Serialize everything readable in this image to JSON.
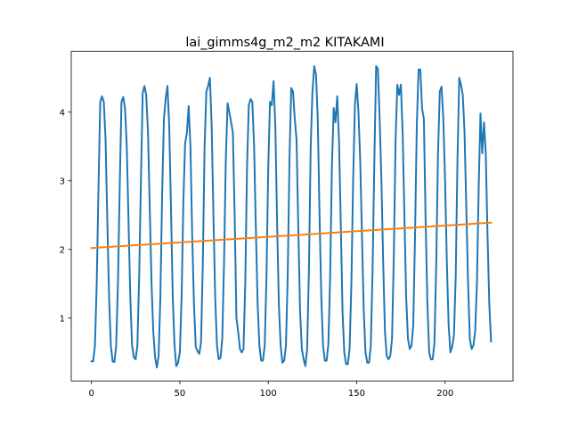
{
  "chart_data": {
    "type": "line",
    "title": "lai_gimms4g_m2_m2 KITAKAMI",
    "xlabel": "",
    "ylabel": "",
    "xlim": [
      -11.4,
      238.4
    ],
    "ylim": [
      0.085,
      4.885
    ],
    "x_ticks": [
      0,
      50,
      100,
      150,
      200
    ],
    "y_ticks": [
      1,
      2,
      3,
      4
    ],
    "grid": false,
    "legend": "none",
    "series": [
      {
        "color": "#1f77b4",
        "points": [
          [
            0,
            0.37
          ],
          [
            1,
            0.37
          ],
          [
            2,
            0.6
          ],
          [
            3,
            1.5
          ],
          [
            4,
            2.9
          ],
          [
            5,
            4.15
          ],
          [
            6,
            4.23
          ],
          [
            7,
            4.15
          ],
          [
            8,
            3.6
          ],
          [
            9,
            2.4
          ],
          [
            10,
            1.3
          ],
          [
            11,
            0.6
          ],
          [
            12,
            0.37
          ],
          [
            13,
            0.36
          ],
          [
            14,
            0.6
          ],
          [
            15,
            1.5
          ],
          [
            16,
            2.9
          ],
          [
            17,
            4.15
          ],
          [
            18,
            4.22
          ],
          [
            19,
            4.05
          ],
          [
            20,
            3.5
          ],
          [
            21,
            2.4
          ],
          [
            22,
            1.3
          ],
          [
            23,
            0.6
          ],
          [
            24,
            0.43
          ],
          [
            25,
            0.4
          ],
          [
            26,
            0.6
          ],
          [
            27,
            1.6
          ],
          [
            28,
            3.0
          ],
          [
            29,
            4.28
          ],
          [
            30,
            4.38
          ],
          [
            31,
            4.25
          ],
          [
            32,
            3.7
          ],
          [
            33,
            2.6
          ],
          [
            34,
            1.5
          ],
          [
            35,
            0.8
          ],
          [
            36,
            0.43
          ],
          [
            37,
            0.28
          ],
          [
            38,
            0.45
          ],
          [
            39,
            1.3
          ],
          [
            40,
            2.8
          ],
          [
            41,
            3.9
          ],
          [
            42,
            4.2
          ],
          [
            43,
            4.38
          ],
          [
            44,
            3.8
          ],
          [
            45,
            2.6
          ],
          [
            46,
            1.3
          ],
          [
            47,
            0.6
          ],
          [
            48,
            0.3
          ],
          [
            49,
            0.35
          ],
          [
            50,
            0.5
          ],
          [
            51,
            1.3
          ],
          [
            52,
            2.7
          ],
          [
            53,
            3.55
          ],
          [
            54,
            3.7
          ],
          [
            55,
            4.09
          ],
          [
            56,
            3.5
          ],
          [
            57,
            2.2
          ],
          [
            58,
            1.2
          ],
          [
            59,
            0.58
          ],
          [
            60,
            0.52
          ],
          [
            61,
            0.48
          ],
          [
            62,
            0.65
          ],
          [
            63,
            1.8
          ],
          [
            64,
            3.5
          ],
          [
            65,
            4.3
          ],
          [
            66,
            4.38
          ],
          [
            67,
            4.5
          ],
          [
            68,
            3.8
          ],
          [
            69,
            2.5
          ],
          [
            70,
            1.3
          ],
          [
            71,
            0.6
          ],
          [
            72,
            0.4
          ],
          [
            73,
            0.42
          ],
          [
            74,
            0.7
          ],
          [
            75,
            1.8
          ],
          [
            76,
            3.3
          ],
          [
            77,
            4.13
          ],
          [
            78,
            4.0
          ],
          [
            79,
            3.85
          ],
          [
            80,
            3.7
          ],
          [
            81,
            2.5
          ],
          [
            82,
            1.0
          ],
          [
            83,
            0.8
          ],
          [
            84,
            0.55
          ],
          [
            85,
            0.5
          ],
          [
            86,
            0.55
          ],
          [
            87,
            1.5
          ],
          [
            88,
            3.2
          ],
          [
            89,
            4.1
          ],
          [
            90,
            4.19
          ],
          [
            91,
            4.15
          ],
          [
            92,
            3.5
          ],
          [
            93,
            2.3
          ],
          [
            94,
            1.2
          ],
          [
            95,
            0.6
          ],
          [
            96,
            0.38
          ],
          [
            97,
            0.38
          ],
          [
            98,
            0.6
          ],
          [
            99,
            1.6
          ],
          [
            100,
            3.2
          ],
          [
            101,
            4.15
          ],
          [
            102,
            4.1
          ],
          [
            103,
            4.45
          ],
          [
            104,
            3.8
          ],
          [
            105,
            2.4
          ],
          [
            106,
            1.2
          ],
          [
            107,
            0.6
          ],
          [
            108,
            0.35
          ],
          [
            109,
            0.38
          ],
          [
            110,
            0.6
          ],
          [
            111,
            1.6
          ],
          [
            112,
            3.3
          ],
          [
            113,
            4.35
          ],
          [
            114,
            4.3
          ],
          [
            115,
            3.9
          ],
          [
            116,
            3.6
          ],
          [
            117,
            2.3
          ],
          [
            118,
            1.1
          ],
          [
            119,
            0.55
          ],
          [
            120,
            0.4
          ],
          [
            121,
            0.3
          ],
          [
            122,
            0.55
          ],
          [
            123,
            1.7
          ],
          [
            124,
            3.5
          ],
          [
            125,
            4.3
          ],
          [
            126,
            4.67
          ],
          [
            127,
            4.55
          ],
          [
            128,
            3.9
          ],
          [
            129,
            2.5
          ],
          [
            130,
            1.3
          ],
          [
            131,
            0.6
          ],
          [
            132,
            0.38
          ],
          [
            133,
            0.38
          ],
          [
            134,
            0.62
          ],
          [
            135,
            1.6
          ],
          [
            136,
            3.2
          ],
          [
            137,
            4.06
          ],
          [
            138,
            3.85
          ],
          [
            139,
            4.23
          ],
          [
            140,
            3.6
          ],
          [
            141,
            2.4
          ],
          [
            142,
            1.1
          ],
          [
            143,
            0.5
          ],
          [
            144,
            0.33
          ],
          [
            145,
            0.33
          ],
          [
            146,
            0.55
          ],
          [
            147,
            1.5
          ],
          [
            148,
            3.0
          ],
          [
            149,
            4.1
          ],
          [
            150,
            4.41
          ],
          [
            151,
            4.0
          ],
          [
            152,
            3.3
          ],
          [
            153,
            2.2
          ],
          [
            154,
            1.1
          ],
          [
            155,
            0.5
          ],
          [
            156,
            0.35
          ],
          [
            157,
            0.35
          ],
          [
            158,
            0.6
          ],
          [
            159,
            1.7
          ],
          [
            160,
            3.3
          ],
          [
            161,
            4.67
          ],
          [
            162,
            4.63
          ],
          [
            163,
            3.9
          ],
          [
            164,
            3.0
          ],
          [
            165,
            1.8
          ],
          [
            166,
            0.8
          ],
          [
            167,
            0.45
          ],
          [
            168,
            0.4
          ],
          [
            169,
            0.45
          ],
          [
            170,
            0.7
          ],
          [
            171,
            1.9
          ],
          [
            172,
            3.6
          ],
          [
            173,
            4.4
          ],
          [
            174,
            4.25
          ],
          [
            175,
            4.4
          ],
          [
            176,
            3.7
          ],
          [
            177,
            2.5
          ],
          [
            178,
            1.3
          ],
          [
            179,
            0.7
          ],
          [
            180,
            0.55
          ],
          [
            181,
            0.6
          ],
          [
            182,
            0.9
          ],
          [
            183,
            2.2
          ],
          [
            184,
            3.8
          ],
          [
            185,
            4.62
          ],
          [
            186,
            4.62
          ],
          [
            187,
            4.05
          ],
          [
            188,
            3.9
          ],
          [
            189,
            2.4
          ],
          [
            190,
            1.2
          ],
          [
            191,
            0.5
          ],
          [
            192,
            0.4
          ],
          [
            193,
            0.4
          ],
          [
            194,
            0.65
          ],
          [
            195,
            1.8
          ],
          [
            196,
            3.4
          ],
          [
            197,
            4.3
          ],
          [
            198,
            4.37
          ],
          [
            199,
            3.9
          ],
          [
            200,
            3.0
          ],
          [
            201,
            1.8
          ],
          [
            202,
            0.9
          ],
          [
            203,
            0.5
          ],
          [
            204,
            0.58
          ],
          [
            205,
            0.75
          ],
          [
            206,
            1.6
          ],
          [
            207,
            3.3
          ],
          [
            208,
            4.5
          ],
          [
            209,
            4.4
          ],
          [
            210,
            4.25
          ],
          [
            211,
            3.7
          ],
          [
            212,
            2.6
          ],
          [
            213,
            1.5
          ],
          [
            214,
            0.7
          ],
          [
            215,
            0.55
          ],
          [
            216,
            0.6
          ],
          [
            217,
            0.8
          ],
          [
            218,
            1.5
          ],
          [
            219,
            2.9
          ],
          [
            220,
            3.98
          ],
          [
            221,
            3.4
          ],
          [
            222,
            3.85
          ],
          [
            223,
            3.4
          ],
          [
            224,
            2.2
          ],
          [
            225,
            1.2
          ],
          [
            226,
            0.66
          ]
        ]
      },
      {
        "color": "#ff7f0e",
        "points": [
          [
            0,
            2.02
          ],
          [
            226,
            2.39
          ]
        ]
      }
    ]
  }
}
